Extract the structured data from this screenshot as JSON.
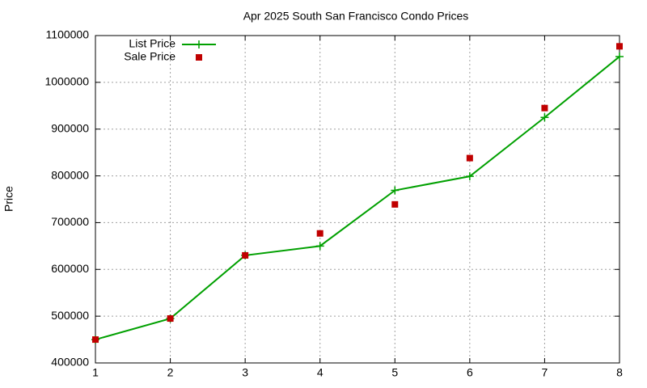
{
  "chart_data": {
    "type": "line",
    "title": "Apr 2025 South San Francisco Condo Prices",
    "y_label": "Price",
    "x": [
      1,
      2,
      3,
      4,
      5,
      6,
      7,
      8
    ],
    "xlim": [
      1,
      8
    ],
    "xticks": [
      1,
      2,
      3,
      4,
      5,
      6,
      7,
      8
    ],
    "ylim": [
      400000,
      1100000
    ],
    "yticks": [
      400000,
      500000,
      600000,
      700000,
      800000,
      900000,
      1000000,
      1100000
    ],
    "grid": true,
    "legend": "top-left",
    "series": [
      {
        "name": "List Price",
        "color": "#00a000",
        "line": true,
        "marker": "plus",
        "values": [
          450000,
          495000,
          630000,
          650000,
          769000,
          799000,
          925000,
          1055000
        ]
      },
      {
        "name": "Sale Price",
        "color": "#c00000",
        "line": false,
        "marker": "square",
        "values": [
          450000,
          495000,
          630000,
          677000,
          739000,
          838000,
          945000,
          1077000
        ]
      }
    ]
  }
}
